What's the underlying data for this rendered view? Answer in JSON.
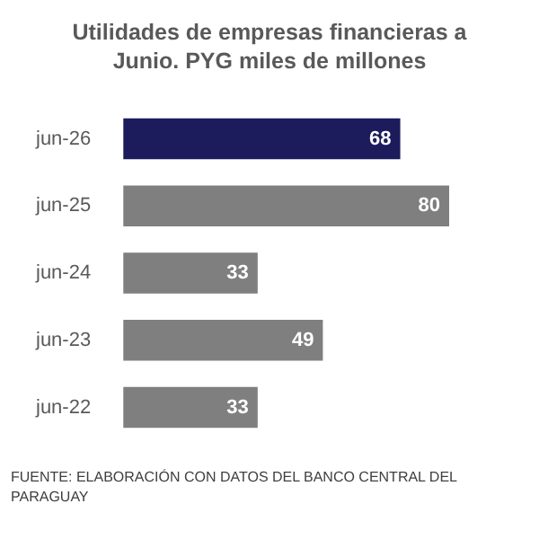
{
  "chart_data": {
    "type": "bar",
    "orientation": "horizontal",
    "title": "Utilidades de empresas financieras a Junio. PYG miles de millones",
    "categories": [
      "jun-26",
      "jun-25",
      "jun-24",
      "jun-23",
      "jun-22"
    ],
    "values": [
      68,
      80,
      33,
      49,
      33
    ],
    "colors": [
      "#1c1c5c",
      "#7f7f7f",
      "#7f7f7f",
      "#7f7f7f",
      "#7f7f7f"
    ],
    "data_labels": true,
    "legend": false,
    "annotations": [
      "FUENTE: ELABORACIÓN CON DATOS DEL BANCO CENTRAL DEL PARAGUAY"
    ]
  }
}
